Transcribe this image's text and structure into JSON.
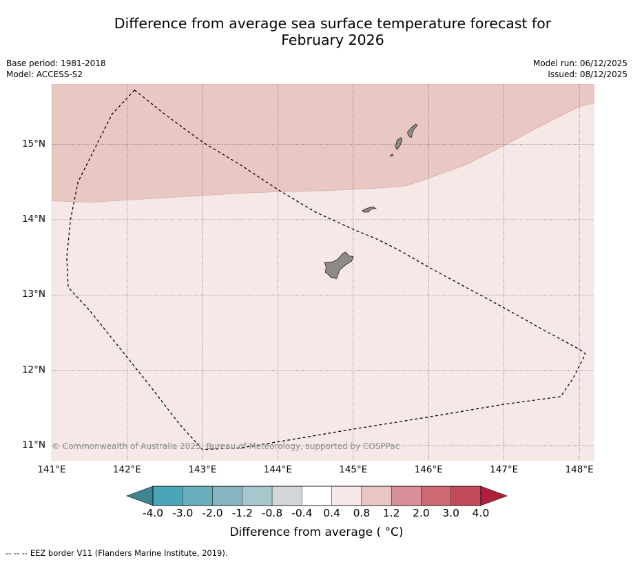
{
  "title_line1": "Difference from average sea surface temperature forecast for",
  "title_line2": "February 2026",
  "base_period": "Base period: 1981-2018",
  "model": "Model: ACCESS-S2",
  "model_run": "Model run: 06/12/2025",
  "issued": "Issued: 08/12/2025",
  "copyright": "© Commonwealth of Australia 2025, Bureau of Meteorology, supported by COSPPac",
  "footer_legend": "--  --  -- EEZ border V11 (Flanders Marine Institute, 2019).",
  "colors": {
    "warm_0_4_0_8": "#f5e8e7",
    "warm_0_8_1_2": "#e9c7c2",
    "land": "#8f8a87",
    "grid": "#555555"
  },
  "map": {
    "lon_range": [
      141.0,
      148.2
    ],
    "lat_range": [
      10.8,
      15.8
    ],
    "x_ticks": [
      {
        "value": 141,
        "label": "141°E"
      },
      {
        "value": 142,
        "label": "142°E"
      },
      {
        "value": 143,
        "label": "143°E"
      },
      {
        "value": 144,
        "label": "144°E"
      },
      {
        "value": 145,
        "label": "145°E"
      },
      {
        "value": 146,
        "label": "146°E"
      },
      {
        "value": 147,
        "label": "147°E"
      },
      {
        "value": 148,
        "label": "148°E"
      }
    ],
    "y_ticks": [
      {
        "value": 15,
        "label": "15°N"
      },
      {
        "value": 14,
        "label": "14°N"
      },
      {
        "value": 13,
        "label": "13°N"
      },
      {
        "value": 12,
        "label": "12°N"
      },
      {
        "value": 11,
        "label": "11°N"
      }
    ],
    "anomaly_regions": [
      {
        "name": "anomaly-0-8-to-1-2",
        "fill_key": "warm_0_8_1_2",
        "boundary": [
          [
            141.0,
            14.25
          ],
          [
            141.5,
            14.23
          ],
          [
            142.0,
            14.26
          ],
          [
            142.5,
            14.29
          ],
          [
            143.0,
            14.32
          ],
          [
            143.5,
            14.35
          ],
          [
            144.0,
            14.37
          ],
          [
            144.5,
            14.38
          ],
          [
            145.0,
            14.4
          ],
          [
            145.5,
            14.43
          ],
          [
            145.7,
            14.45
          ],
          [
            146.0,
            14.55
          ],
          [
            146.5,
            14.73
          ],
          [
            147.0,
            14.98
          ],
          [
            147.5,
            15.25
          ],
          [
            148.0,
            15.5
          ],
          [
            148.2,
            15.55
          ]
        ]
      }
    ],
    "eez_border": [
      [
        142.1,
        15.72
      ],
      [
        142.5,
        15.4
      ],
      [
        143.0,
        15.03
      ],
      [
        143.5,
        14.73
      ],
      [
        144.0,
        14.4
      ],
      [
        144.5,
        14.1
      ],
      [
        145.0,
        13.87
      ],
      [
        145.3,
        13.75
      ],
      [
        145.6,
        13.6
      ],
      [
        146.0,
        13.37
      ],
      [
        146.5,
        13.1
      ],
      [
        147.0,
        12.83
      ],
      [
        147.5,
        12.55
      ],
      [
        148.0,
        12.28
      ],
      [
        148.08,
        12.22
      ],
      [
        147.92,
        11.9
      ],
      [
        147.75,
        11.65
      ],
      [
        147.0,
        11.55
      ],
      [
        146.0,
        11.38
      ],
      [
        145.0,
        11.22
      ],
      [
        144.0,
        11.05
      ],
      [
        143.5,
        10.97
      ],
      [
        143.0,
        10.95
      ],
      [
        142.7,
        11.28
      ],
      [
        142.3,
        11.8
      ],
      [
        141.9,
        12.3
      ],
      [
        141.5,
        12.8
      ],
      [
        141.22,
        13.1
      ],
      [
        141.2,
        13.5
      ],
      [
        141.25,
        14.0
      ],
      [
        141.35,
        14.5
      ],
      [
        141.6,
        15.0
      ],
      [
        141.8,
        15.4
      ],
      [
        142.1,
        15.72
      ]
    ],
    "islands": [
      {
        "name": "guam",
        "coords": [
          [
            144.9,
            13.57
          ],
          [
            144.94,
            13.52
          ],
          [
            145.0,
            13.51
          ],
          [
            144.98,
            13.45
          ],
          [
            144.9,
            13.4
          ],
          [
            144.82,
            13.33
          ],
          [
            144.78,
            13.22
          ],
          [
            144.71,
            13.23
          ],
          [
            144.66,
            13.28
          ],
          [
            144.63,
            13.3
          ],
          [
            144.64,
            13.37
          ],
          [
            144.62,
            13.43
          ],
          [
            144.73,
            13.44
          ],
          [
            144.8,
            13.48
          ],
          [
            144.86,
            13.55
          ]
        ]
      },
      {
        "name": "rota",
        "coords": [
          [
            145.12,
            14.12
          ],
          [
            145.18,
            14.15
          ],
          [
            145.26,
            14.17
          ],
          [
            145.3,
            14.15
          ],
          [
            145.24,
            14.14
          ],
          [
            145.2,
            14.1
          ],
          [
            145.14,
            14.1
          ]
        ]
      },
      {
        "name": "tinian",
        "coords": [
          [
            145.58,
            15.05
          ],
          [
            145.63,
            15.09
          ],
          [
            145.65,
            15.06
          ],
          [
            145.62,
            14.98
          ],
          [
            145.58,
            14.93
          ],
          [
            145.56,
            14.97
          ]
        ]
      },
      {
        "name": "saipan",
        "coords": [
          [
            145.72,
            15.16
          ],
          [
            145.78,
            15.23
          ],
          [
            145.83,
            15.27
          ],
          [
            145.85,
            15.25
          ],
          [
            145.8,
            15.19
          ],
          [
            145.77,
            15.09
          ],
          [
            145.75,
            15.1
          ],
          [
            145.73,
            15.12
          ]
        ]
      },
      {
        "name": "aguijan",
        "coords": [
          [
            145.49,
            14.85
          ],
          [
            145.52,
            14.87
          ],
          [
            145.53,
            14.85
          ],
          [
            145.5,
            14.84
          ]
        ]
      }
    ]
  },
  "colorbar": {
    "title": "Difference from average ( °C)",
    "labels": [
      "-4.0",
      "-3.0",
      "-2.0",
      "-1.2",
      "-0.8",
      "-0.4",
      "0.4",
      "0.8",
      "1.2",
      "2.0",
      "3.0",
      "4.0"
    ],
    "under_color": "#3d8591",
    "over_color": "#b11f3f",
    "bin_colors": [
      "#49a6b8",
      "#6aafbe",
      "#88b4c1",
      "#a7c7cc",
      "#d0d6d9",
      "#ffffff",
      "#f5e8e7",
      "#e9c7c2",
      "#d88f98",
      "#cc6972",
      "#c24a5c"
    ]
  }
}
